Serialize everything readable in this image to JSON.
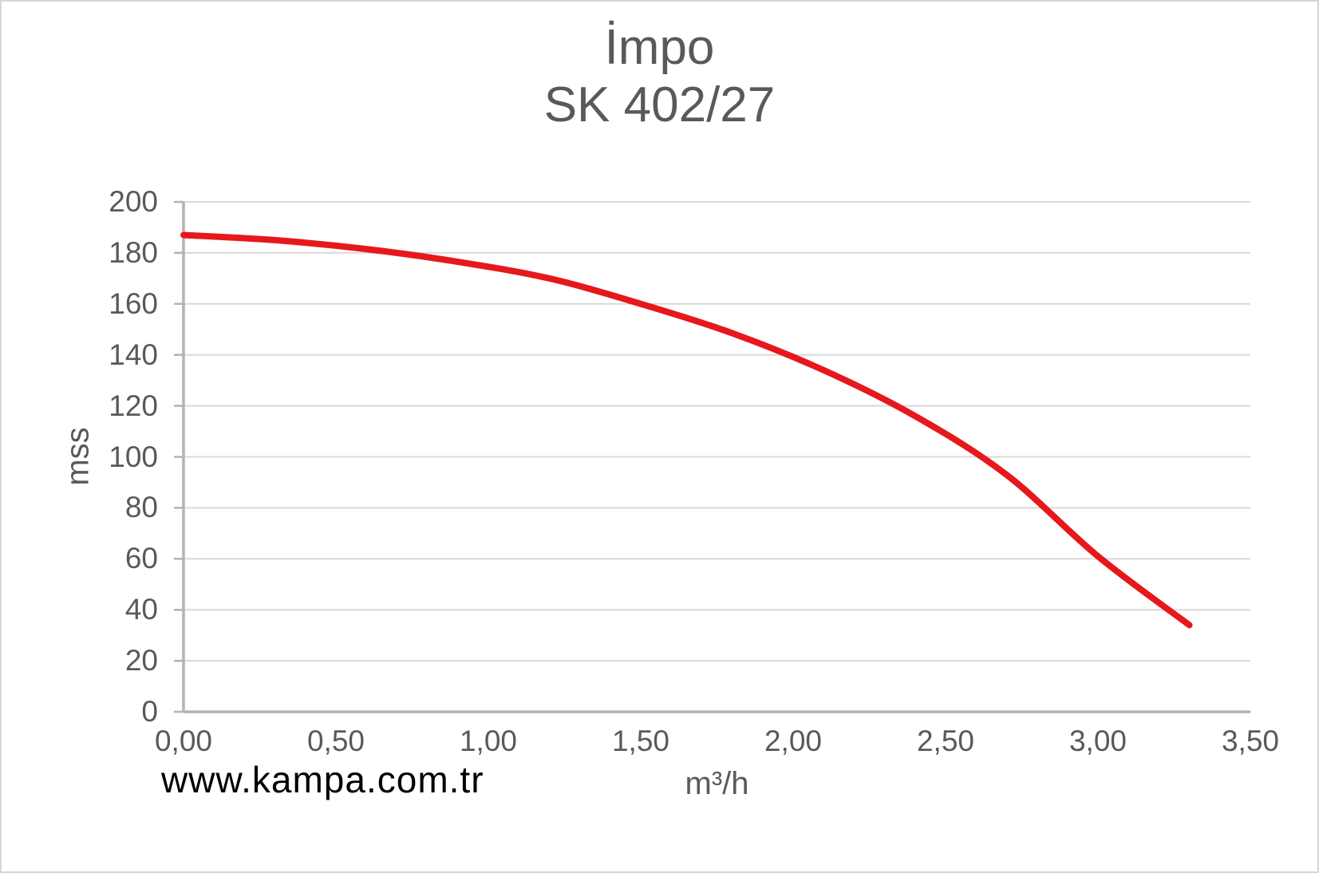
{
  "window": {
    "background": "#ffffff",
    "border_color": "#d6d6d6"
  },
  "title": {
    "line1": "İmpo",
    "line2": "SK 402/27"
  },
  "watermark": "www.kampa.com.tr",
  "chart_data": {
    "type": "line",
    "title": "İmpo SK 402/27",
    "xlabel": "m³/h",
    "ylabel": "mss",
    "xlim": [
      0,
      3.5
    ],
    "ylim": [
      0,
      200
    ],
    "x_tick_step": 0.5,
    "y_tick_step": 20,
    "x_tick_labels": [
      "0,00",
      "0,50",
      "1,00",
      "1,50",
      "2,00",
      "2,50",
      "3,00",
      "3,50"
    ],
    "y_tick_labels": [
      "0",
      "20",
      "40",
      "60",
      "80",
      "100",
      "120",
      "140",
      "160",
      "180",
      "200"
    ],
    "x": [
      0.0,
      0.3,
      0.6,
      0.9,
      1.2,
      1.5,
      1.8,
      2.1,
      2.4,
      2.7,
      3.0,
      3.3
    ],
    "series": [
      {
        "name": "SK 402/27",
        "color": "#e6181c",
        "values": [
          187,
          185,
          181.5,
          176.5,
          170,
          160,
          148.5,
          134,
          116,
          93,
          61,
          34
        ]
      }
    ],
    "grid": "horizontal",
    "legend": "none",
    "text_color": "#595959",
    "grid_color": "#d9d9d9",
    "axis_color": "#b3b3b3"
  }
}
